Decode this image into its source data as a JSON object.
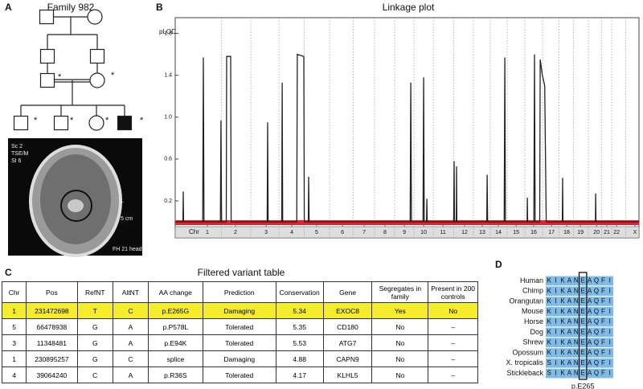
{
  "panel_a": {
    "label": "A",
    "title": "Family 982",
    "asterisk": "*",
    "mri_labels": [
      "Sc 2",
      "TSE/M",
      "SI 6",
      "L",
      "5 cm",
      "FH 21 head"
    ]
  },
  "chart_data": {
    "type": "line",
    "panel_label": "B",
    "title": "Linkage plot",
    "y_label": "pLOD",
    "x_label": "Chr",
    "x": [
      0,
      50,
      52,
      54,
      178,
      182,
      186,
      292,
      296,
      300,
      330,
      333,
      359,
      362,
      595,
      598,
      601,
      689,
      692,
      695,
      786,
      790,
      832,
      835,
      861,
      863,
      866,
      1520,
      1524,
      1528,
      1603,
      1607,
      1611,
      1626,
      1628,
      1630,
      1801,
      1804,
      1807,
      1818,
      1820,
      1822,
      2015,
      2018,
      2021,
      2128,
      2132,
      2136,
      2276,
      2278,
      2280,
      2320,
      2324,
      2328,
      2358,
      2361,
      2375,
      2390,
      2400,
      2504,
      2506,
      2508,
      2718,
      2720,
      2722,
      3000
    ],
    "series": [
      {
        "name": "pLOD",
        "color": "#222222",
        "values": [
          0,
          0,
          0.29,
          0,
          0,
          1.57,
          0,
          0,
          0.97,
          0,
          0,
          1.58,
          1.58,
          0,
          0,
          0.95,
          0,
          0,
          1.33,
          0,
          0,
          1.6,
          1.58,
          0,
          0,
          0.43,
          0,
          0,
          1.33,
          0,
          0,
          1.38,
          0,
          0,
          0.22,
          0,
          0,
          0.58,
          0,
          0,
          0.53,
          0,
          0,
          0.45,
          0,
          0,
          1.57,
          0,
          0,
          0.23,
          0,
          0,
          1.6,
          0,
          0,
          1.55,
          1.4,
          1.3,
          0,
          0,
          0.42,
          0,
          0,
          0.27,
          0,
          0
        ]
      }
    ],
    "xlim": [
      0,
      3000
    ],
    "ylim": [
      0,
      1.95
    ],
    "yticks": [
      0.2,
      0.6,
      {
        "value": 1,
        "label": "1.0"
      },
      1.4,
      1.8
    ],
    "xticks": [
      {
        "value": 208,
        "label": "1"
      },
      {
        "value": 390,
        "label": "2"
      },
      {
        "value": 588,
        "label": "3"
      },
      {
        "value": 754,
        "label": "4"
      },
      {
        "value": 915,
        "label": "5"
      },
      {
        "value": 1082,
        "label": "6"
      },
      {
        "value": 1222,
        "label": "7"
      },
      {
        "value": 1357,
        "label": "8"
      },
      {
        "value": 1482,
        "label": "9"
      },
      {
        "value": 1607,
        "label": "10"
      },
      {
        "value": 1732,
        "label": "11"
      },
      {
        "value": 1872,
        "label": "12"
      },
      {
        "value": 1986,
        "label": "13"
      },
      {
        "value": 2090,
        "label": "14"
      },
      {
        "value": 2205,
        "label": "15"
      },
      {
        "value": 2319,
        "label": "16"
      },
      {
        "value": 2434,
        "label": "17"
      },
      {
        "value": 2532,
        "label": "18"
      },
      {
        "value": 2621,
        "label": "19"
      },
      {
        "value": 2725,
        "label": "20"
      },
      {
        "value": 2792,
        "label": "21"
      },
      {
        "value": 2855,
        "label": "22"
      },
      {
        "value": 2974,
        "label": "X"
      }
    ]
  },
  "table": {
    "label": "C",
    "title": "Filtered variant table",
    "header": [
      "Chr",
      "Pos",
      "RefNT",
      "AltNT",
      "AA change",
      "Prediction",
      "Conservation",
      "Gene",
      "Segregates in family",
      "Present in 200 controls"
    ],
    "rows": [
      [
        "1",
        "231472698",
        "T",
        "C",
        "p.E265G",
        "Damaging",
        "5.34",
        "EXOC8",
        "Yes",
        "No"
      ],
      [
        "5",
        "66478938",
        "G",
        "A",
        "p.P578L",
        "Tolerated",
        "5.35",
        "CD180",
        "No",
        "–"
      ],
      [
        "3",
        "11348481",
        "G",
        "A",
        "p.E94K",
        "Tolerated",
        "5.53",
        "ATG7",
        "No",
        "–"
      ],
      [
        "1",
        "230895257",
        "G",
        "C",
        "splice",
        "Damaging",
        "4.88",
        "CAPN9",
        "No",
        "–"
      ],
      [
        "4",
        "39064240",
        "C",
        "A",
        "p.R36S",
        "Tolerated",
        "4.17",
        "KLHL5",
        "No",
        "–"
      ]
    ]
  },
  "alignment": {
    "label": "D",
    "position_label": "p.E265",
    "species": [
      "Human",
      "Chimp",
      "Orangutan",
      "Mouse",
      "Horse",
      "Dog",
      "Shrew",
      "Opossum",
      "X. tropicalis",
      "Stickleback"
    ],
    "sequences": [
      [
        "K",
        "I",
        "K",
        "A",
        "N",
        "E",
        "A",
        "Q",
        "F",
        "I"
      ],
      [
        "K",
        "I",
        "K",
        "A",
        "N",
        "E",
        "A",
        "Q",
        "F",
        "I"
      ],
      [
        "K",
        "I",
        "K",
        "A",
        "N",
        "E",
        "A",
        "Q",
        "F",
        "I"
      ],
      [
        "K",
        "I",
        "K",
        "A",
        "N",
        "E",
        "A",
        "Q",
        "F",
        "I"
      ],
      [
        "K",
        "I",
        "K",
        "A",
        "N",
        "E",
        "A",
        "Q",
        "F",
        "I"
      ],
      [
        "K",
        "I",
        "K",
        "A",
        "N",
        "E",
        "A",
        "Q",
        "F",
        "I"
      ],
      [
        "K",
        "I",
        "K",
        "A",
        "N",
        "E",
        "A",
        "Q",
        "F",
        "I"
      ],
      [
        "K",
        "I",
        "K",
        "A",
        "N",
        "E",
        "A",
        "Q",
        "F",
        "I"
      ],
      [
        "S",
        "I",
        "K",
        "A",
        "N",
        "E",
        "A",
        "Q",
        "F",
        "I"
      ],
      [
        "S",
        "I",
        "K",
        "A",
        "N",
        "E",
        "A",
        "Q",
        "F",
        "I"
      ]
    ]
  }
}
